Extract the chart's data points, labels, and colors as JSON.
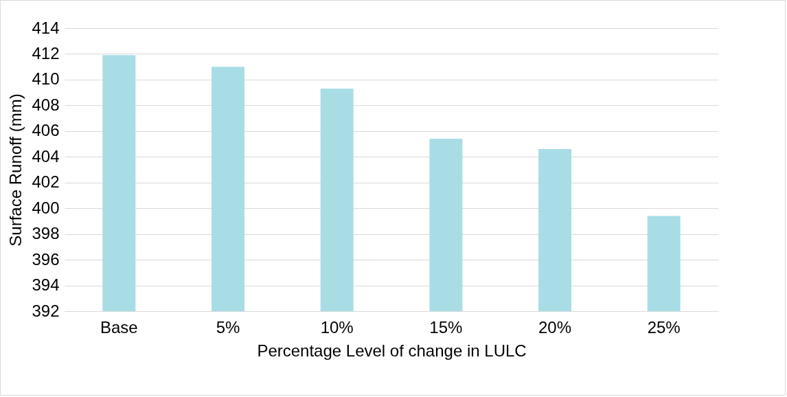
{
  "chart_data": {
    "type": "bar",
    "xlabel": "Percentage Level of change in LULC",
    "ylabel": "Surface Runoff (mm)",
    "categories": [
      "Base",
      "5%",
      "10%",
      "15%",
      "20%",
      "25%"
    ],
    "values": [
      411.9,
      411.0,
      409.3,
      405.4,
      404.6,
      399.4
    ],
    "color": "#a8dde6",
    "ylim": [
      392,
      414
    ],
    "yticks": [
      392,
      394,
      396,
      398,
      400,
      402,
      404,
      406,
      408,
      410,
      412,
      414
    ],
    "grid": "y"
  }
}
